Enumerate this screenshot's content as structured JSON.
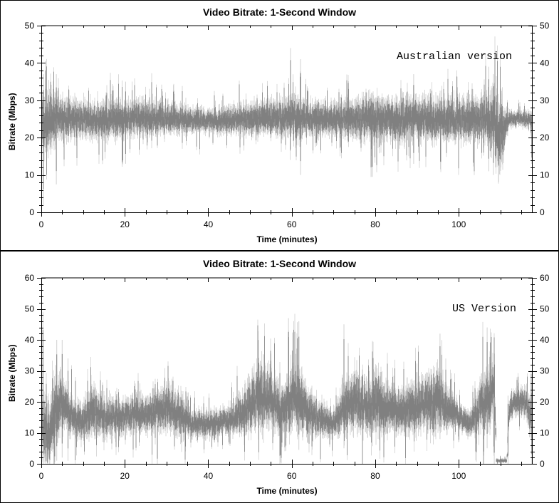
{
  "colors": {
    "envelope": "#d0d0d0",
    "trace": "#808080",
    "axis": "#000000",
    "background": "#ffffff"
  },
  "chart_data": [
    {
      "type": "area",
      "title": "Video Bitrate: 1-Second Window",
      "annotation": "Australian version",
      "xlabel": "Time (minutes)",
      "ylabel": "Bitrate (Mbps)",
      "xlim": [
        0,
        117.7
      ],
      "ylim": [
        0,
        50
      ],
      "xticks": [
        0,
        20,
        40,
        60,
        80,
        100
      ],
      "yticks": [
        0,
        10,
        20,
        30,
        40,
        50
      ],
      "x_minor_step": 5,
      "y_minor_step": 2,
      "right_axis_mirrored": true,
      "grid": false,
      "series": [
        {
          "name": "peak envelope (light)",
          "color": "#d0d0d0"
        },
        {
          "name": "bitrate (dark)",
          "color": "#808080"
        }
      ],
      "profile": {
        "x": [
          0,
          1,
          3.5,
          10,
          20,
          30,
          40,
          50,
          58,
          60,
          62,
          64,
          70,
          78,
          80,
          90,
          100,
          106,
          108,
          110,
          111,
          112,
          117.7
        ],
        "mean": [
          24,
          24,
          25,
          25,
          25,
          25,
          24.5,
          25,
          25,
          26,
          25,
          25,
          25,
          25,
          25,
          25,
          25,
          25,
          24,
          22,
          23,
          25,
          25
        ],
        "spread": [
          5,
          6,
          4,
          3.5,
          3.5,
          3,
          2,
          3,
          3.5,
          4,
          4,
          3,
          3,
          4,
          4,
          4,
          4,
          4,
          6,
          8,
          4,
          1.5,
          1.5
        ],
        "spikes": [
          {
            "x": 0.5,
            "min": 2,
            "max": 37
          },
          {
            "x": 3.6,
            "min": 7.5,
            "max": 37
          },
          {
            "x": 20.2,
            "min": 13,
            "max": 35
          },
          {
            "x": 59.7,
            "min": 17,
            "max": 44
          },
          {
            "x": 62.1,
            "min": 10,
            "max": 41
          },
          {
            "x": 79.0,
            "min": 9.5,
            "max": 31
          },
          {
            "x": 79.3,
            "min": 9.5,
            "max": 32
          },
          {
            "x": 89.2,
            "min": 13,
            "max": 37
          },
          {
            "x": 107.2,
            "min": 11,
            "max": 39
          },
          {
            "x": 108.3,
            "min": 10,
            "max": 37
          },
          {
            "x": 117.5,
            "min": 13,
            "max": 27
          }
        ]
      }
    },
    {
      "type": "area",
      "title": "Video Bitrate: 1-Second Window",
      "annotation": "US Version",
      "xlabel": "Time (minutes)",
      "ylabel": "Bitrate (Mbps)",
      "xlim": [
        0,
        117.7
      ],
      "ylim": [
        0,
        60
      ],
      "xticks": [
        0,
        20,
        40,
        60,
        80,
        100
      ],
      "yticks": [
        0,
        10,
        20,
        30,
        40,
        50,
        60
      ],
      "x_minor_step": 5,
      "y_minor_step": 2,
      "right_axis_mirrored": true,
      "grid": false,
      "series": [
        {
          "name": "peak envelope (light)",
          "color": "#d0d0d0"
        },
        {
          "name": "bitrate (dark)",
          "color": "#808080"
        }
      ],
      "profile": {
        "x": [
          0,
          0.5,
          1.5,
          3,
          5,
          8,
          10,
          12,
          15,
          18,
          20,
          25,
          30,
          33,
          36,
          40,
          45,
          50,
          52,
          55,
          58,
          60,
          63,
          66,
          70,
          72,
          75,
          78,
          80,
          85,
          90,
          95,
          97,
          100,
          103,
          105,
          107,
          108.5,
          109,
          111.5,
          112,
          113,
          116,
          117.7
        ],
        "mean": [
          20,
          12,
          9,
          17,
          20,
          14,
          13,
          17,
          15,
          15,
          16,
          16,
          18,
          16,
          13,
          13,
          14,
          18,
          22,
          20,
          17,
          22,
          18,
          15,
          13,
          17,
          21,
          17,
          20,
          17,
          18,
          21,
          18,
          15,
          13,
          18,
          20,
          25,
          1,
          1,
          16,
          20,
          20,
          12
        ],
        "spread": [
          6,
          8,
          7,
          9,
          6,
          4,
          4,
          6,
          4,
          4,
          4,
          4,
          5,
          5,
          3,
          3,
          3,
          6,
          8,
          6,
          5,
          8,
          6,
          4,
          3,
          5,
          7,
          6,
          7,
          5,
          6,
          7,
          5,
          3,
          3,
          6,
          7,
          6,
          0.5,
          0.5,
          3,
          3,
          3,
          6
        ],
        "spikes": [
          {
            "x": 0.4,
            "min": 1,
            "max": 49
          },
          {
            "x": 3.7,
            "min": 1,
            "max": 40
          },
          {
            "x": 5.0,
            "min": 2,
            "max": 40
          },
          {
            "x": 6.4,
            "min": 1,
            "max": 34
          },
          {
            "x": 27.8,
            "min": 0,
            "max": 14
          },
          {
            "x": 59.2,
            "min": 10,
            "max": 47
          },
          {
            "x": 61.7,
            "min": 4.5,
            "max": 46
          },
          {
            "x": 72.5,
            "min": 5,
            "max": 45
          },
          {
            "x": 95.5,
            "min": 8,
            "max": 42
          },
          {
            "x": 106.8,
            "min": 5,
            "max": 44
          },
          {
            "x": 108.5,
            "min": 0,
            "max": 30
          },
          {
            "x": 111.8,
            "min": 0,
            "max": 22
          },
          {
            "x": 117.5,
            "min": 0,
            "max": 26
          }
        ]
      }
    }
  ]
}
